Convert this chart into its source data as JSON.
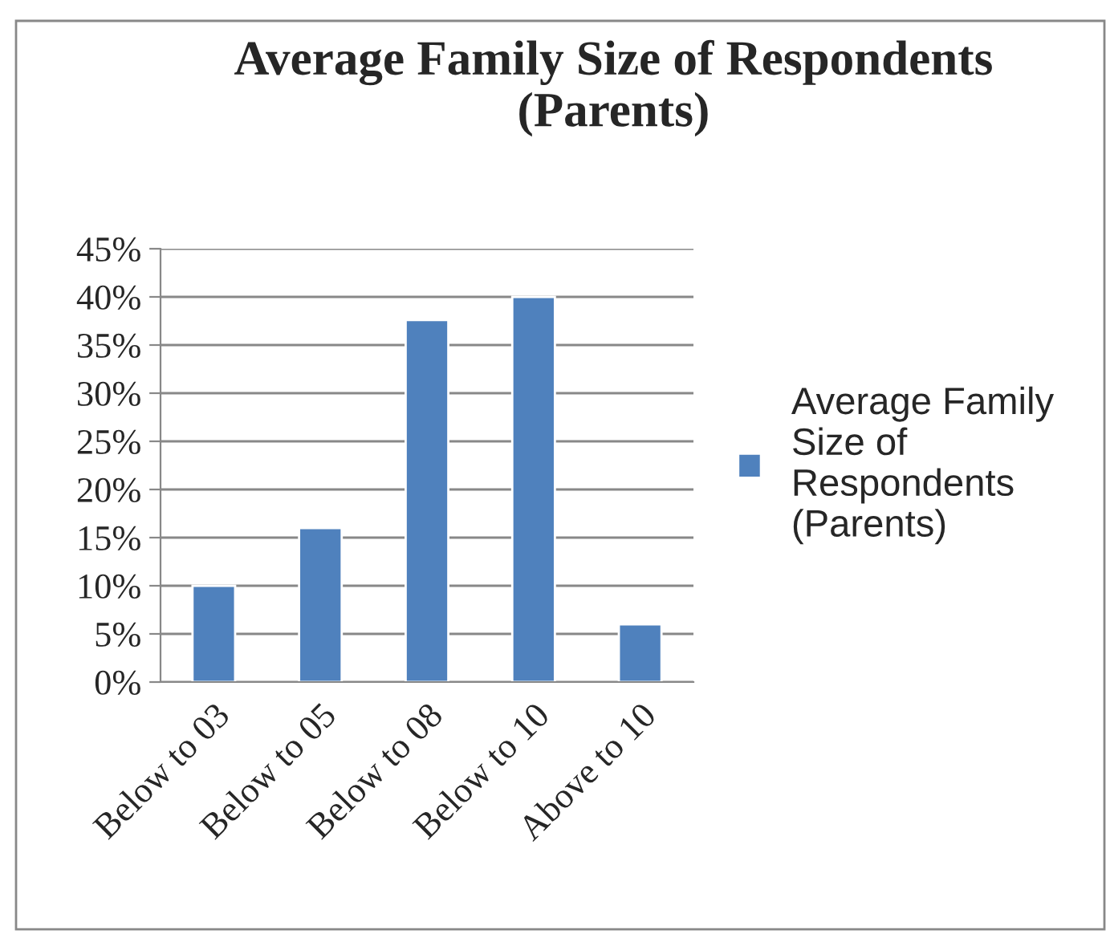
{
  "chart_data": {
    "type": "bar",
    "title": "Average Family Size of Respondents\n(Parents)",
    "categories": [
      "Below to 03",
      "Below to 05",
      "Below to 08",
      "Below to 10",
      "Above to 10"
    ],
    "series": [
      {
        "name": "Average Family\nSize of\nRespondents\n(Parents)",
        "color": "#4f81bd",
        "values": [
          10,
          16,
          37.6,
          40,
          6
        ]
      }
    ],
    "ylim": [
      0,
      45
    ],
    "yticks": [
      {
        "value": 0,
        "label": "0%"
      },
      {
        "value": 5,
        "label": "5%"
      },
      {
        "value": 10,
        "label": "10%"
      },
      {
        "value": 15,
        "label": "15%"
      },
      {
        "value": 20,
        "label": "20%"
      },
      {
        "value": 25,
        "label": "25%"
      },
      {
        "value": 30,
        "label": "30%"
      },
      {
        "value": 35,
        "label": "35%"
      },
      {
        "value": 40,
        "label": "40%"
      },
      {
        "value": 45,
        "label": "45%"
      }
    ],
    "grid": "y",
    "legend": "right"
  }
}
